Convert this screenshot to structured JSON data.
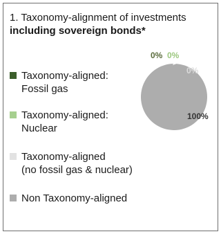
{
  "chart_data": {
    "type": "pie",
    "title_part1": "1. Taxonomy-alignment of investments ",
    "title_bold": "including sovereign bonds*",
    "slices": [
      {
        "label": "Taxonomy-aligned:\nFossil gas",
        "value": 0,
        "display": "0%",
        "color": "#3b5e2b",
        "label_color": "#5a6b3c"
      },
      {
        "label": "Taxonomy-aligned:\nNuclear",
        "value": 0,
        "display": "0%",
        "color": "#a6cf8f",
        "label_color": "#9cc77f"
      },
      {
        "label": "Taxonomy-aligned\n(no fossil gas & nuclear)",
        "value": 0,
        "display": "0%",
        "color": "#e2e2e2",
        "label_color": "#dcdcdc"
      },
      {
        "label": "Non Taxonomy-aligned",
        "value": 100,
        "display": "100%",
        "color": "#adadad",
        "label_color": "#333333"
      }
    ]
  }
}
